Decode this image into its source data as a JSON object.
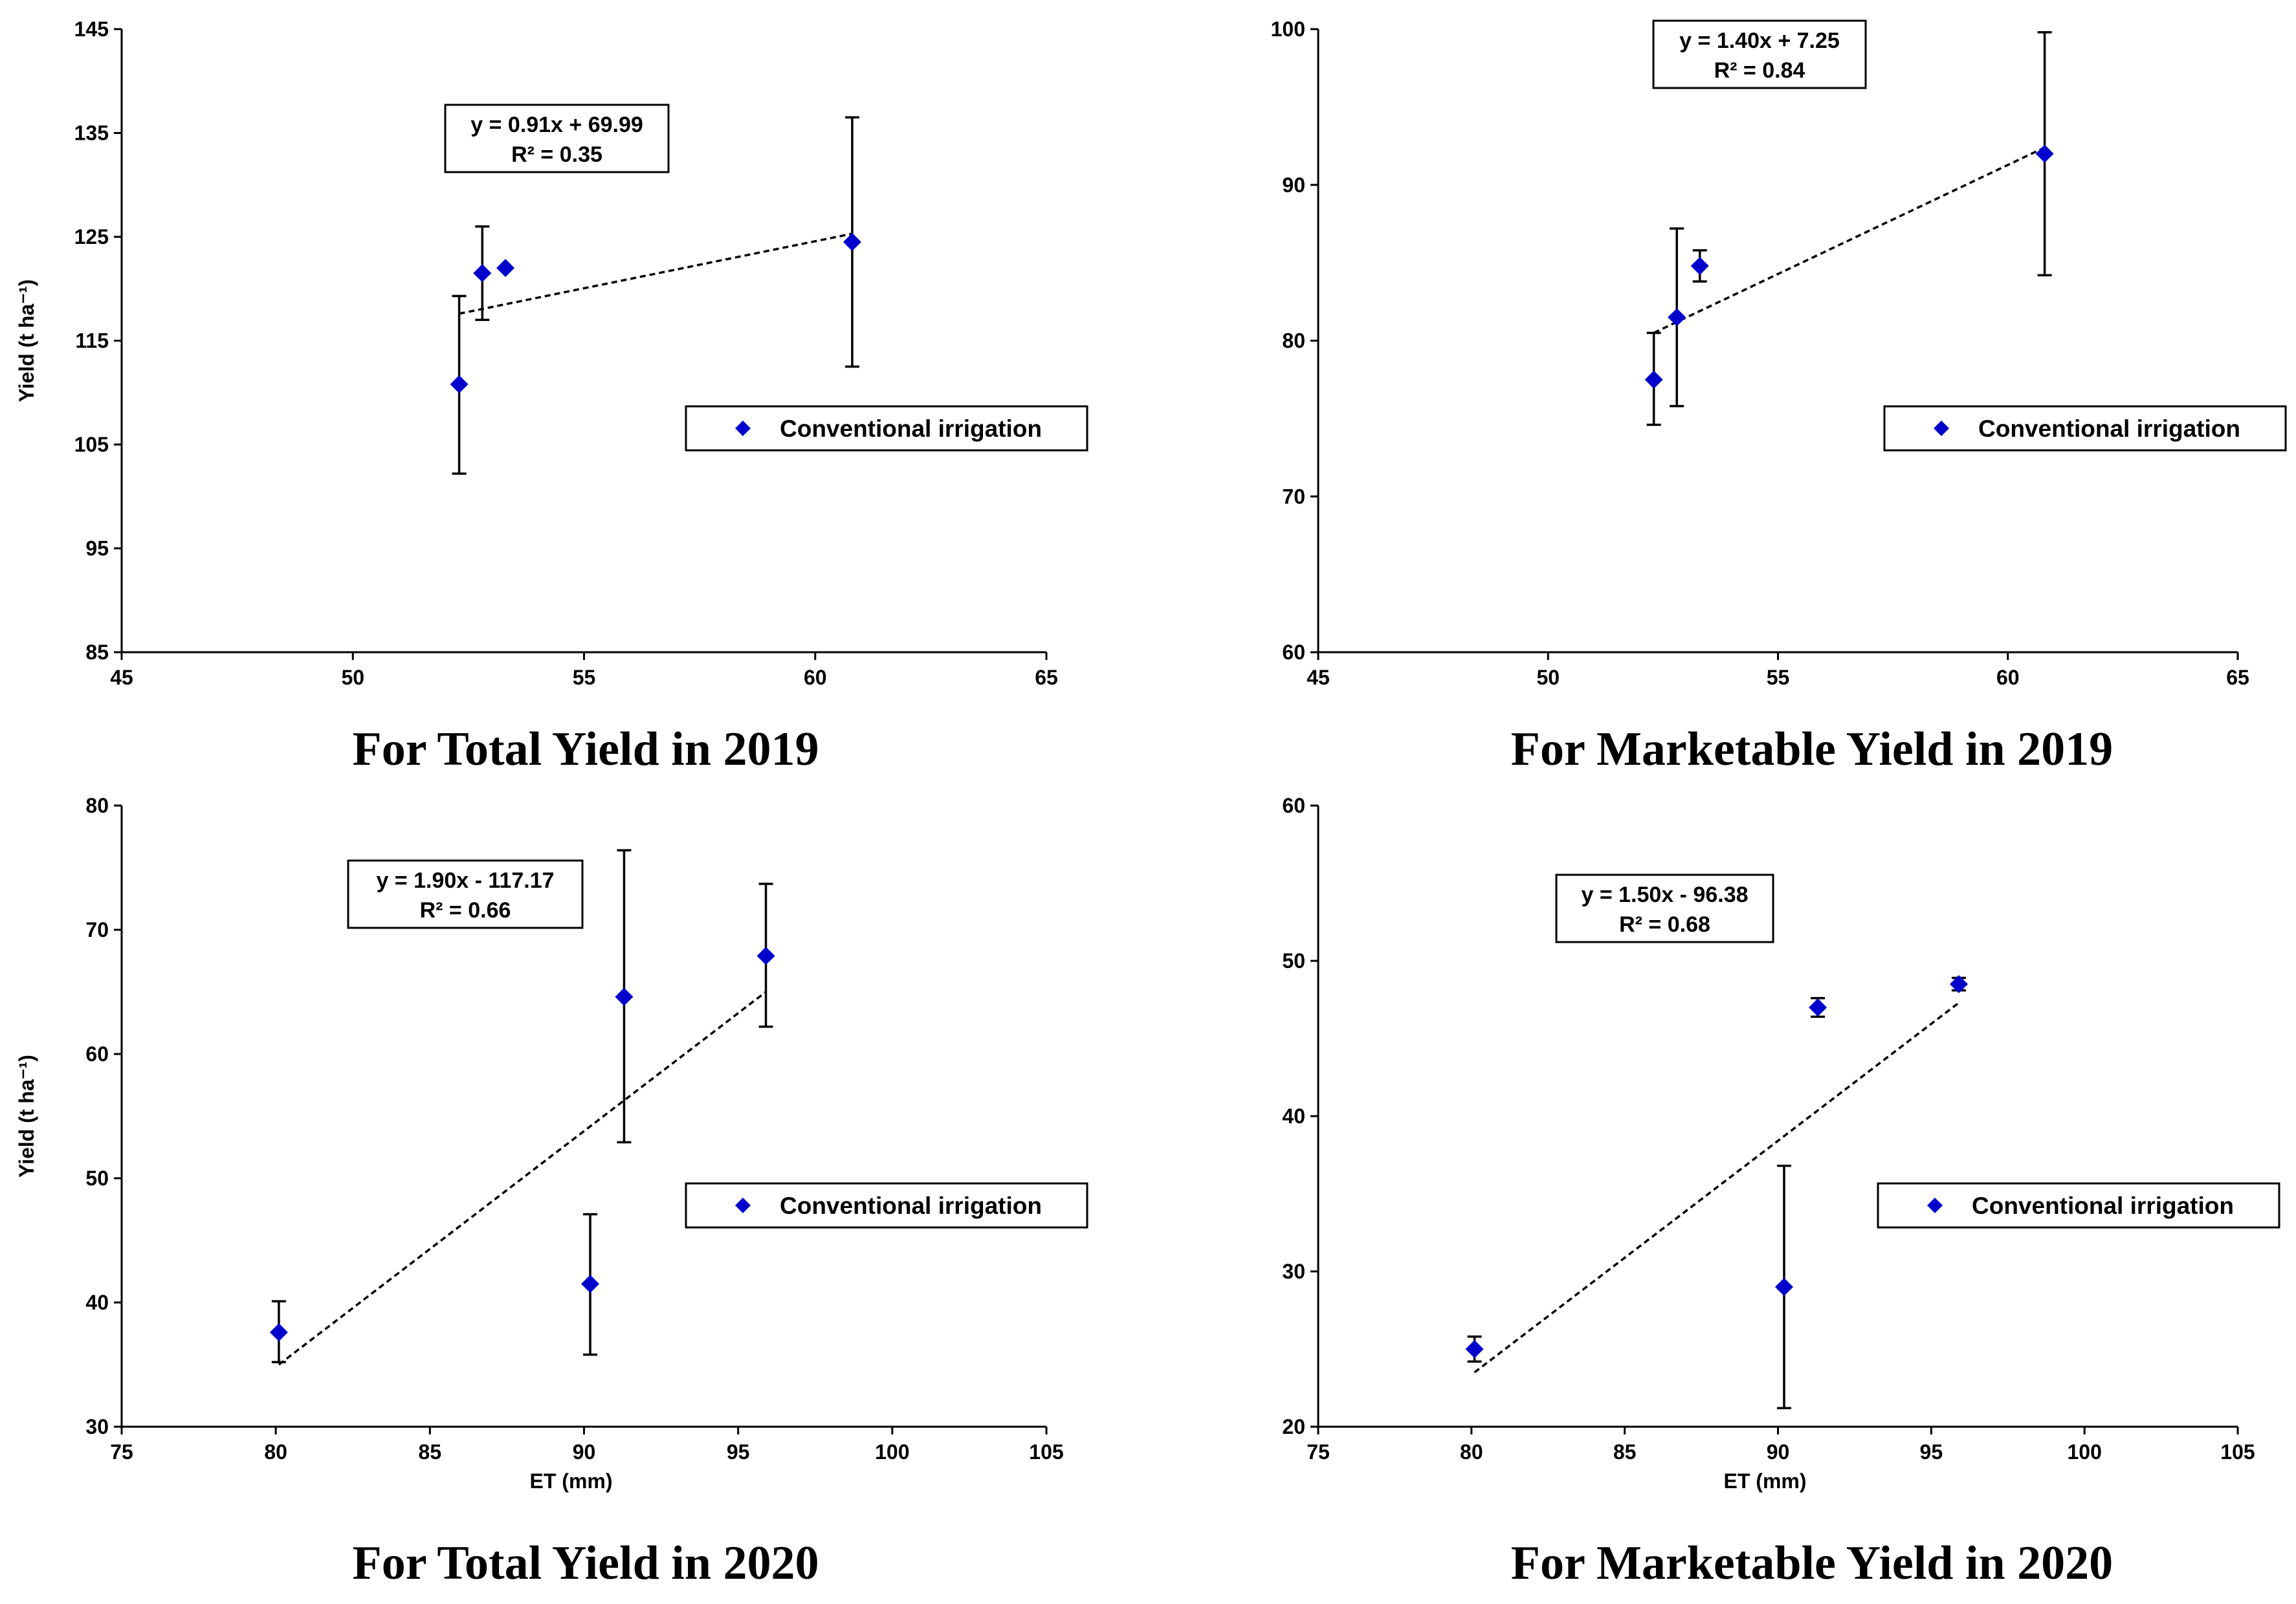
{
  "colors": {
    "marker": "#0000cc",
    "axis": "#000000",
    "trend": "#000000"
  },
  "chart_data": [
    {
      "type": "scatter",
      "caption": "For Total Yield in 2019",
      "xlabel": "",
      "ylabel": "Yield (t ha⁻¹)",
      "xlim": [
        45,
        65
      ],
      "xticks": [
        45,
        50,
        55,
        60,
        65
      ],
      "ylim": [
        85,
        145
      ],
      "yticks": [
        85,
        95,
        105,
        115,
        125,
        135,
        145
      ],
      "legend": "Conventional irrigation",
      "legend_position": "center-right",
      "equation": "y = 0.91x + 69.99",
      "r2": "R² = 0.35",
      "equation_position": "upper-center",
      "series": [
        {
          "name": "Conventional irrigation",
          "points": [
            {
              "x": 52.3,
              "y": 110.8,
              "err_low": 102.2,
              "err_high": 119.3
            },
            {
              "x": 52.8,
              "y": 121.5,
              "err_low": 117.0,
              "err_high": 126.0
            },
            {
              "x": 53.3,
              "y": 122.0,
              "err_low": null,
              "err_high": null
            },
            {
              "x": 60.8,
              "y": 124.5,
              "err_low": 112.5,
              "err_high": 136.5
            }
          ]
        }
      ],
      "trendline": {
        "x0": 52.3,
        "y0": 117.6,
        "x1": 60.8,
        "y1": 125.3
      }
    },
    {
      "type": "scatter",
      "caption": "For Marketable Yield in 2019",
      "xlabel": "",
      "ylabel": "",
      "xlim": [
        45,
        65
      ],
      "xticks": [
        45,
        50,
        55,
        60,
        65
      ],
      "ylim": [
        60,
        100
      ],
      "yticks": [
        60,
        70,
        80,
        90,
        100
      ],
      "legend": "Conventional irrigation",
      "legend_position": "center-right",
      "equation": "y = 1.40x + 7.25",
      "r2": "R² = 0.84",
      "equation_position": "top-center",
      "series": [
        {
          "name": "Conventional irrigation",
          "points": [
            {
              "x": 52.3,
              "y": 77.5,
              "err_low": 74.6,
              "err_high": 80.5
            },
            {
              "x": 52.8,
              "y": 81.5,
              "err_low": 75.8,
              "err_high": 87.2
            },
            {
              "x": 53.3,
              "y": 84.8,
              "err_low": 83.8,
              "err_high": 85.8
            },
            {
              "x": 60.8,
              "y": 92.0,
              "err_low": 84.2,
              "err_high": 99.8
            }
          ]
        }
      ],
      "trendline": {
        "x0": 52.3,
        "y0": 80.5,
        "x1": 60.8,
        "y1": 92.4
      }
    },
    {
      "type": "scatter",
      "caption": "For Total Yield in 2020",
      "xlabel": "ET (mm)",
      "ylabel": "Yield (t ha⁻¹)",
      "xlim": [
        75,
        105
      ],
      "xticks": [
        75,
        80,
        85,
        90,
        95,
        100,
        105
      ],
      "ylim": [
        30,
        80
      ],
      "yticks": [
        30,
        40,
        50,
        60,
        70,
        80
      ],
      "legend": "Conventional irrigation",
      "legend_position": "center-right",
      "equation": "y = 1.90x - 117.17",
      "r2": "R² = 0.66",
      "equation_position": "upper-left",
      "series": [
        {
          "name": "Conventional irrigation",
          "points": [
            {
              "x": 80.1,
              "y": 37.6,
              "err_low": 35.2,
              "err_high": 40.1
            },
            {
              "x": 90.2,
              "y": 41.5,
              "err_low": 35.8,
              "err_high": 47.1
            },
            {
              "x": 91.3,
              "y": 64.6,
              "err_low": 52.9,
              "err_high": 76.4
            },
            {
              "x": 95.9,
              "y": 67.9,
              "err_low": 62.2,
              "err_high": 73.7
            }
          ]
        }
      ],
      "trendline": {
        "x0": 80.1,
        "y0": 35.0,
        "x1": 95.9,
        "y1": 65.0
      }
    },
    {
      "type": "scatter",
      "caption": "For Marketable Yield in 2020",
      "xlabel": "ET (mm)",
      "ylabel": "",
      "xlim": [
        75,
        105
      ],
      "xticks": [
        75,
        80,
        85,
        90,
        95,
        100,
        105
      ],
      "ylim": [
        20,
        60
      ],
      "yticks": [
        20,
        30,
        40,
        50,
        60
      ],
      "legend": "Conventional irrigation",
      "legend_position": "center-right",
      "equation": "y = 1.50x - 96.38",
      "r2": "R² = 0.68",
      "equation_position": "upper-left",
      "series": [
        {
          "name": "Conventional irrigation",
          "points": [
            {
              "x": 80.1,
              "y": 25.0,
              "err_low": 24.2,
              "err_high": 25.8
            },
            {
              "x": 90.2,
              "y": 29.0,
              "err_low": 21.2,
              "err_high": 36.8
            },
            {
              "x": 91.3,
              "y": 47.0,
              "err_low": 46.4,
              "err_high": 47.6
            },
            {
              "x": 95.9,
              "y": 48.5,
              "err_low": 48.1,
              "err_high": 48.9
            }
          ]
        }
      ],
      "trendline": {
        "x0": 80.1,
        "y0": 23.5,
        "x1": 95.9,
        "y1": 47.3
      }
    }
  ]
}
